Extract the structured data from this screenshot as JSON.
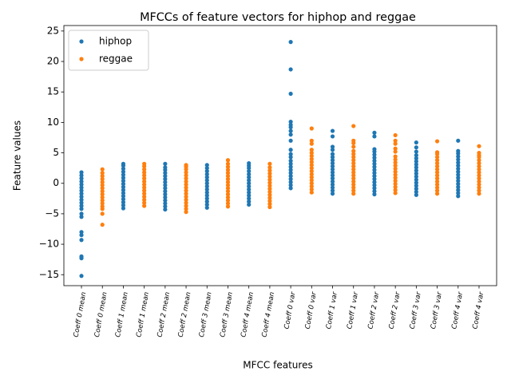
{
  "chart_data": {
    "type": "strip",
    "title": "MFCCs of feature vectors for hiphop and reggae",
    "x_label": "MFCC features",
    "y_label": "Feature values",
    "categories": [
      "Coeff 0 mean",
      "Coeff 0 mean",
      "Coeff 1 mean",
      "Coeff 1 mean",
      "Coeff 2 mean",
      "Coeff 2 mean",
      "Coeff 3 mean",
      "Coeff 3 mean",
      "Coeff 4 mean",
      "Coeff 4 mean",
      "Coeff 0 var",
      "Coeff 0 var",
      "Coeff 1 var",
      "Coeff 1 var",
      "Coeff 2 var",
      "Coeff 2 var",
      "Coeff 3 var",
      "Coeff 3 var",
      "Coeff 4 var",
      "Coeff 4 var"
    ],
    "ylim": [
      -16.8,
      25.9
    ],
    "yticks": [
      {
        "value": -15,
        "label": "−15"
      },
      {
        "value": -10,
        "label": "−10"
      },
      {
        "value": -5,
        "label": "−5"
      },
      0,
      5,
      10,
      15,
      20,
      25
    ],
    "legend": "upper left",
    "series": [
      {
        "name": "hiphop",
        "color": "#1f77b4",
        "values": [
          [
            -15.2,
            -12.3,
            -12,
            -9.3,
            -8.5,
            -8,
            -5.5,
            -5,
            -4.2,
            -3.7,
            -3.2,
            -2.7,
            -2.2,
            -1.7,
            -1.2,
            -0.7,
            -0.2,
            0.3,
            0.8,
            1.3,
            1.8
          ],
          null,
          [
            -4.1,
            -3.6,
            -3.1,
            -2.6,
            -2.1,
            -1.6,
            -1.1,
            -0.6,
            -0.1,
            0.4,
            0.9,
            1.4,
            1.9,
            2.4,
            2.9,
            3.2
          ],
          null,
          [
            -4.3,
            -3.8,
            -3.3,
            -2.8,
            -2.3,
            -1.8,
            -1.3,
            -0.8,
            -0.3,
            0.2,
            0.7,
            1.2,
            1.7,
            2.2,
            2.6,
            3.2
          ],
          null,
          [
            -4,
            -3.5,
            -3,
            -2.5,
            -2,
            -1.5,
            -1,
            -0.5,
            0,
            0.5,
            1,
            1.5,
            2,
            2.5,
            3
          ],
          null,
          [
            -3.5,
            -3,
            -2.5,
            -2,
            -1.5,
            -1,
            -0.5,
            0,
            0.5,
            1,
            1.5,
            2,
            2.5,
            2.9,
            3.3
          ],
          null,
          [
            -0.8,
            -0.3,
            0.2,
            0.7,
            1.2,
            1.7,
            2.2,
            2.7,
            3.2,
            3.7,
            4.3,
            4.8,
            5.5,
            7,
            8,
            8.6,
            9.2,
            9.6,
            10.1,
            14.7,
            18.7,
            23.2
          ],
          null,
          [
            -1.7,
            -1.2,
            -0.7,
            -0.2,
            0.3,
            0.8,
            1.3,
            1.8,
            2.3,
            2.8,
            3.3,
            3.8,
            4.3,
            4.8,
            5.5,
            6,
            7.7,
            8.6
          ],
          null,
          [
            -1.8,
            -1.3,
            -0.8,
            -0.3,
            0.2,
            0.7,
            1.2,
            1.7,
            2.2,
            2.7,
            3.2,
            3.7,
            4.2,
            4.7,
            5.2,
            5.6,
            7.7,
            8.3
          ],
          null,
          [
            -1.9,
            -1.4,
            -0.9,
            -0.4,
            0.1,
            0.6,
            1.1,
            1.6,
            2.1,
            2.6,
            3.1,
            3.6,
            4.1,
            4.6,
            5.2,
            5.9,
            6.7
          ],
          null,
          [
            -2.1,
            -1.6,
            -1.1,
            -0.6,
            -0.1,
            0.4,
            0.9,
            1.4,
            1.9,
            2.4,
            2.9,
            3.4,
            3.9,
            4.4,
            4.9,
            5.3,
            7
          ],
          null
        ]
      },
      {
        "name": "reggae",
        "color": "#ff7f0e",
        "values": [
          null,
          [
            -6.8,
            -5,
            -4.2,
            -3.8,
            -3.3,
            -2.8,
            -2.3,
            -1.8,
            -1.3,
            -0.8,
            -0.3,
            0.2,
            0.7,
            1.2,
            1.7,
            2.3
          ],
          null,
          [
            -3.7,
            -3.2,
            -2.7,
            -2.2,
            -1.7,
            -1.2,
            -0.7,
            -0.2,
            0.3,
            0.8,
            1.3,
            1.8,
            2.3,
            2.8,
            3.2
          ],
          null,
          [
            -4.7,
            -4.2,
            -3.7,
            -3.2,
            -2.7,
            -2.2,
            -1.7,
            -1.2,
            -0.7,
            -0.2,
            0.3,
            0.8,
            1.3,
            1.8,
            2.3,
            2.7,
            3
          ],
          null,
          [
            -3.8,
            -3.3,
            -2.8,
            -2.3,
            -1.8,
            -1.3,
            -0.8,
            -0.3,
            0.2,
            0.7,
            1.2,
            1.7,
            2.2,
            2.7,
            3.2,
            3.8
          ],
          null,
          [
            -3.9,
            -3.4,
            -2.9,
            -2.4,
            -1.9,
            -1.4,
            -0.9,
            -0.4,
            0.1,
            0.6,
            1.1,
            1.6,
            2.1,
            2.6,
            3.2
          ],
          null,
          [
            -1.5,
            -1,
            -0.5,
            0,
            0.5,
            1,
            1.5,
            2,
            2.5,
            3,
            3.5,
            4,
            4.5,
            5,
            5.5,
            6.5,
            7,
            9
          ],
          null,
          [
            -1.7,
            -1.2,
            -0.7,
            -0.2,
            0.3,
            0.8,
            1.3,
            1.8,
            2.3,
            2.8,
            3.3,
            3.8,
            4.3,
            4.8,
            5.3,
            6,
            6.6,
            7,
            9.4
          ],
          null,
          [
            -1.6,
            -1.1,
            -0.6,
            -0.1,
            0.4,
            0.9,
            1.4,
            1.9,
            2.4,
            2.9,
            3.4,
            3.9,
            4.4,
            5.2,
            5.7,
            6.5,
            7,
            7.9
          ],
          null,
          [
            -1.7,
            -1.2,
            -0.7,
            -0.2,
            0.3,
            0.8,
            1.3,
            1.8,
            2.3,
            2.8,
            3.3,
            3.8,
            4.3,
            4.8,
            5.1,
            6.9
          ],
          null,
          [
            -1.7,
            -1.2,
            -0.7,
            -0.2,
            0.3,
            0.8,
            1.3,
            1.8,
            2.3,
            2.8,
            3.3,
            3.8,
            4.3,
            4.6,
            5,
            6.1
          ]
        ]
      }
    ]
  }
}
